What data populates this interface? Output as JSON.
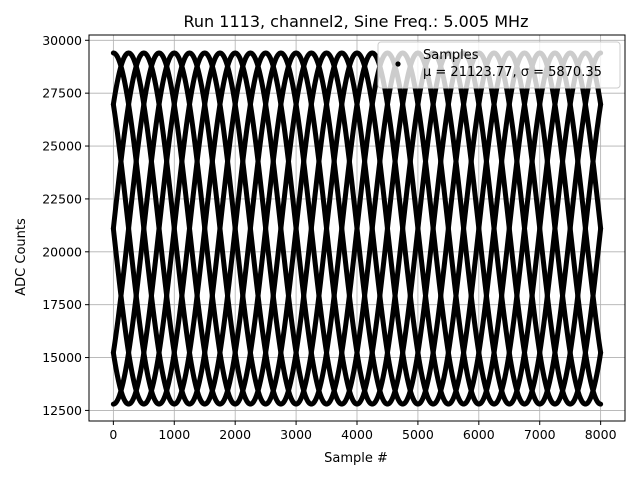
{
  "chart_data": {
    "type": "scatter",
    "title": "Run 1113, channel2, Sine Freq.: 5.005 MHz",
    "xlabel": "Sample #",
    "ylabel": "ADC Counts",
    "xlim": [
      -400,
      8400
    ],
    "ylim": [
      12000,
      30250
    ],
    "xticks": [
      0,
      1000,
      2000,
      3000,
      4000,
      5000,
      6000,
      7000,
      8000
    ],
    "yticks": [
      12500,
      15000,
      17500,
      20000,
      22500,
      25000,
      27500,
      30000
    ],
    "grid": true,
    "legend_position": "top-right",
    "legend": {
      "series_label": "Samples",
      "stats_label": "μ = 21123.77, σ = 5870.35"
    },
    "series": [
      {
        "name": "Samples",
        "color": "#000000",
        "marker": "point",
        "model": "sinusoid traces",
        "mean": 21100,
        "amplitude": 8300,
        "period_samples": 2000,
        "phases_deg": [
          0,
          45,
          90,
          135,
          180,
          225,
          270,
          315
        ],
        "x_range": [
          0,
          8000
        ]
      }
    ]
  }
}
